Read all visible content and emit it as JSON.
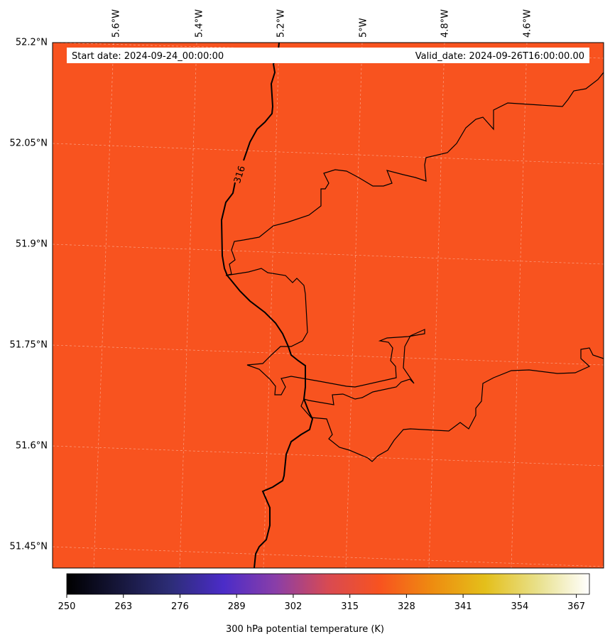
{
  "map": {
    "start_date": "Start date: 2024-09-24_00:00:00",
    "valid_date": "Valid_date: 2024-09-26T16:00:00.00",
    "contour_label": "316",
    "field_color": "#F8531F",
    "lon_labels": [
      "5.6°W",
      "5.4°W",
      "5.2°W",
      "5°W",
      "4.8°W",
      "4.6°W"
    ],
    "lat_labels": [
      "52.2°N",
      "52.05°N",
      "51.9°N",
      "51.75°N",
      "51.6°N",
      "51.45°N"
    ]
  },
  "colorbar": {
    "label": "300 hPa potential temperature (K)",
    "ticks": [
      "250",
      "263",
      "276",
      "289",
      "302",
      "315",
      "328",
      "341",
      "354",
      "367"
    ],
    "colors": [
      "#000000",
      "#16163a",
      "#2d2d78",
      "#4b2cc8",
      "#8a3ea8",
      "#d84a52",
      "#f8531f",
      "#ee8c10",
      "#e4bf1a",
      "#e8e08a",
      "#ffffff"
    ]
  }
}
